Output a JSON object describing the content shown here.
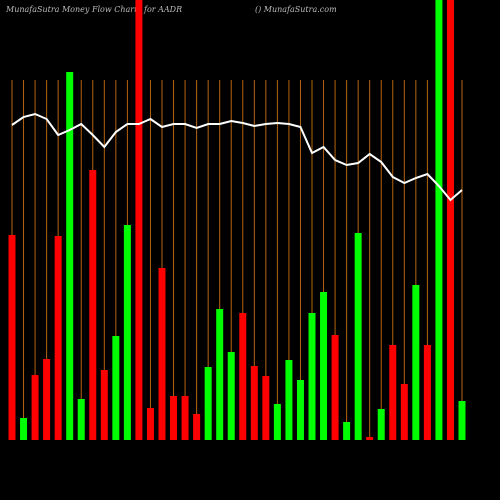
{
  "chart_data": {
    "type": "bar",
    "title": "MunafaSutra  Money Flow  Charts for AADR",
    "subtitle": "() MunafaSutra.com",
    "categories": [
      null,
      null,
      null,
      null,
      null,
      null,
      null,
      null,
      null,
      null,
      null,
      null,
      null,
      null,
      null,
      null,
      null,
      null,
      null,
      null,
      null,
      null,
      null,
      null,
      null,
      null,
      null,
      null,
      null,
      null,
      null,
      null,
      null,
      null,
      null,
      null,
      null,
      null,
      null,
      null
    ],
    "ylim": [
      0,
      440
    ],
    "series": [
      {
        "type": "bar",
        "values": [
          205,
          22,
          65,
          81,
          204,
          368,
          41,
          270,
          70,
          104,
          215,
          440,
          32,
          172,
          44,
          44,
          26,
          73,
          131,
          88,
          127,
          74,
          64,
          36,
          80,
          60,
          127,
          148,
          105,
          18,
          207,
          3,
          31,
          95,
          56,
          155,
          95,
          440,
          440,
          39
        ],
        "colors": [
          "#ff0000",
          "#00ff00",
          "#ff0000",
          "#ff0000",
          "#ff0000",
          "#00ff00",
          "#00ff00",
          "#ff0000",
          "#ff0000",
          "#00ff00",
          "#00ff00",
          "#ff0000",
          "#ff0000",
          "#ff0000",
          "#ff0000",
          "#ff0000",
          "#ff0000",
          "#00ff00",
          "#00ff00",
          "#00ff00",
          "#ff0000",
          "#ff0000",
          "#ff0000",
          "#00ff00",
          "#00ff00",
          "#00ff00",
          "#00ff00",
          "#00ff00",
          "#ff0000",
          "#00ff00",
          "#00ff00",
          "#ff0000",
          "#00ff00",
          "#ff0000",
          "#ff0000",
          "#00ff00",
          "#ff0000",
          "#00ff00",
          "#ff0000",
          "#00ff00"
        ]
      },
      {
        "type": "line",
        "color": "#ffffff",
        "values": [
          315,
          323,
          326,
          321,
          305,
          310,
          316,
          305,
          293,
          308,
          316,
          316,
          321,
          313,
          316,
          316,
          312,
          316,
          316,
          319,
          317,
          314,
          316,
          317,
          316,
          313,
          287,
          293,
          280,
          275,
          277,
          286,
          278,
          263,
          257,
          262,
          266,
          254,
          240,
          250
        ]
      }
    ]
  }
}
